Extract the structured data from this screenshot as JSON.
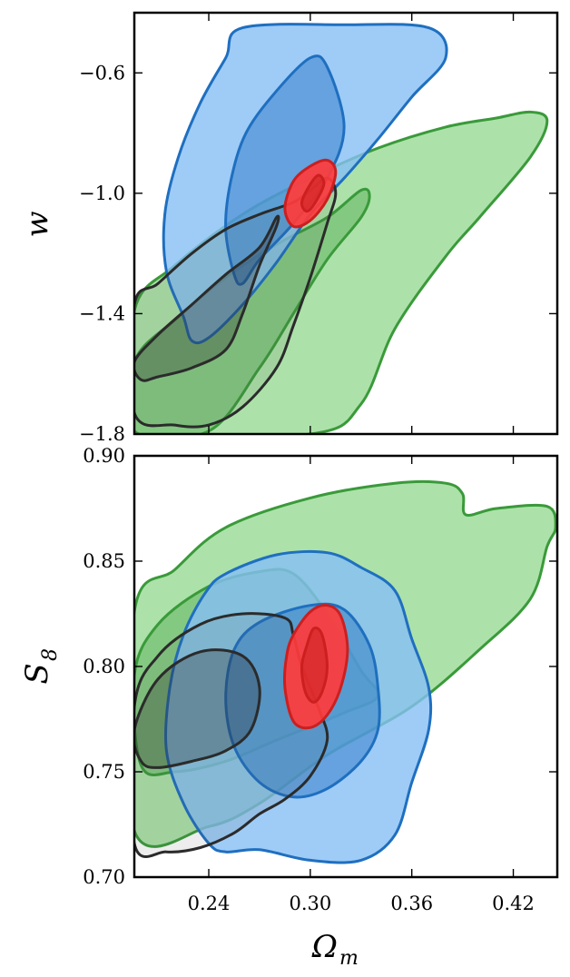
{
  "colors": {
    "green_fill": "#a8e0a4",
    "green_line": "#3a9a3a",
    "blue_fill": "#86bff5",
    "blue_line": "#1f6fc0",
    "dark_fill": "#4f4f4f",
    "dark_line": "#2b2b2b",
    "red_fill": "#ff3b3b",
    "red_line": "#cc1f1f"
  },
  "chart_data": [
    {
      "type": "contour",
      "panel": "top",
      "ylabel": "w",
      "xlim": [
        0.196,
        0.446
      ],
      "ylim": [
        -1.8,
        -0.4
      ],
      "yticks": [
        -0.6,
        -1.0,
        -1.4,
        -1.8
      ],
      "ytick_labels": [
        "−0.6",
        "−1.0",
        "−1.4",
        "−1.8"
      ],
      "xticks": [
        0.24,
        0.3,
        0.36,
        0.42
      ],
      "series": [
        {
          "color": "green",
          "outer": [
            [
              0.196,
              -1.39
            ],
            [
              0.22,
              -1.24
            ],
            [
              0.26,
              -1.07
            ],
            [
              0.3,
              -0.95
            ],
            [
              0.34,
              -0.85
            ],
            [
              0.38,
              -0.78
            ],
            [
              0.41,
              -0.75
            ],
            [
              0.43,
              -0.73
            ],
            [
              0.44,
              -0.76
            ],
            [
              0.43,
              -0.88
            ],
            [
              0.4,
              -1.08
            ],
            [
              0.38,
              -1.21
            ],
            [
              0.35,
              -1.45
            ],
            [
              0.33,
              -1.7
            ],
            [
              0.3,
              -1.8
            ],
            [
              0.196,
              -1.8
            ]
          ],
          "inner": [
            [
              0.196,
              -1.56
            ],
            [
              0.22,
              -1.42
            ],
            [
              0.25,
              -1.28
            ],
            [
              0.28,
              -1.17
            ],
            [
              0.31,
              -1.08
            ],
            [
              0.33,
              -0.99
            ],
            [
              0.335,
              -1.01
            ],
            [
              0.33,
              -1.08
            ],
            [
              0.31,
              -1.22
            ],
            [
              0.29,
              -1.4
            ],
            [
              0.27,
              -1.58
            ],
            [
              0.24,
              -1.79
            ],
            [
              0.196,
              -1.79
            ]
          ]
        },
        {
          "color": "blue",
          "outer": [
            [
              0.26,
              -0.45
            ],
            [
              0.32,
              -0.44
            ],
            [
              0.37,
              -0.45
            ],
            [
              0.38,
              -0.55
            ],
            [
              0.36,
              -0.68
            ],
            [
              0.34,
              -0.82
            ],
            [
              0.32,
              -0.95
            ],
            [
              0.3,
              -1.07
            ],
            [
              0.28,
              -1.23
            ],
            [
              0.26,
              -1.37
            ],
            [
              0.24,
              -1.48
            ],
            [
              0.23,
              -1.49
            ],
            [
              0.225,
              -1.41
            ],
            [
              0.215,
              -1.26
            ],
            [
              0.214,
              -1.07
            ],
            [
              0.222,
              -0.88
            ],
            [
              0.235,
              -0.7
            ],
            [
              0.25,
              -0.55
            ]
          ],
          "inner": [
            [
              0.3,
              -0.55
            ],
            [
              0.31,
              -0.58
            ],
            [
              0.32,
              -0.78
            ],
            [
              0.31,
              -0.95
            ],
            [
              0.29,
              -1.1
            ],
            [
              0.27,
              -1.22
            ],
            [
              0.26,
              -1.3
            ],
            [
              0.255,
              -1.27
            ],
            [
              0.25,
              -1.12
            ],
            [
              0.253,
              -0.96
            ],
            [
              0.262,
              -0.8
            ],
            [
              0.28,
              -0.66
            ]
          ]
        },
        {
          "color": "dark",
          "outer": [
            [
              0.196,
              -1.37
            ],
            [
              0.21,
              -1.3
            ],
            [
              0.23,
              -1.2
            ],
            [
              0.25,
              -1.12
            ],
            [
              0.27,
              -1.07
            ],
            [
              0.29,
              -1.03
            ],
            [
              0.3,
              -0.99
            ],
            [
              0.31,
              -0.95
            ],
            [
              0.315,
              -1.0
            ],
            [
              0.31,
              -1.1
            ],
            [
              0.3,
              -1.28
            ],
            [
              0.29,
              -1.44
            ],
            [
              0.28,
              -1.58
            ],
            [
              0.26,
              -1.71
            ],
            [
              0.24,
              -1.77
            ],
            [
              0.22,
              -1.77
            ],
            [
              0.196,
              -1.73
            ]
          ],
          "inner": [
            [
              0.196,
              -1.56
            ],
            [
              0.21,
              -1.47
            ],
            [
              0.23,
              -1.37
            ],
            [
              0.25,
              -1.27
            ],
            [
              0.27,
              -1.18
            ],
            [
              0.28,
              -1.08
            ],
            [
              0.28,
              -1.11
            ],
            [
              0.27,
              -1.24
            ],
            [
              0.26,
              -1.4
            ],
            [
              0.25,
              -1.52
            ],
            [
              0.23,
              -1.58
            ],
            [
              0.21,
              -1.61
            ],
            [
              0.2,
              -1.62
            ]
          ]
        },
        {
          "color": "red",
          "outer": [
            [
              0.285,
              -1.05
            ],
            [
              0.29,
              -0.96
            ],
            [
              0.3,
              -0.91
            ],
            [
              0.31,
              -0.89
            ],
            [
              0.315,
              -0.93
            ],
            [
              0.31,
              -1.02
            ],
            [
              0.3,
              -1.09
            ],
            [
              0.29,
              -1.11
            ]
          ],
          "inner": [
            [
              0.295,
              -1.03
            ],
            [
              0.3,
              -0.97
            ],
            [
              0.305,
              -0.94
            ],
            [
              0.308,
              -0.97
            ],
            [
              0.303,
              -1.03
            ],
            [
              0.298,
              -1.06
            ]
          ]
        }
      ]
    },
    {
      "type": "contour",
      "panel": "bottom",
      "xlabel": "Ω",
      "xlabel_sub": "m",
      "ylabel": "S",
      "ylabel_sub": "8",
      "xlim": [
        0.196,
        0.446
      ],
      "ylim": [
        0.7,
        0.9
      ],
      "yticks": [
        0.9,
        0.85,
        0.8,
        0.75,
        0.7
      ],
      "ytick_labels": [
        "0.90",
        "0.85",
        "0.80",
        "0.75",
        "0.70"
      ],
      "xticks": [
        0.24,
        0.3,
        0.36,
        0.42
      ],
      "xtick_labels": [
        "0.24",
        "0.30",
        "0.36",
        "0.42"
      ],
      "series": [
        {
          "color": "green",
          "outer": [
            [
              0.196,
              0.826
            ],
            [
              0.22,
              0.846
            ],
            [
              0.25,
              0.866
            ],
            [
              0.3,
              0.88
            ],
            [
              0.35,
              0.887
            ],
            [
              0.38,
              0.887
            ],
            [
              0.39,
              0.882
            ],
            [
              0.392,
              0.872
            ],
            [
              0.41,
              0.875
            ],
            [
              0.44,
              0.876
            ],
            [
              0.445,
              0.866
            ],
            [
              0.44,
              0.857
            ],
            [
              0.43,
              0.832
            ],
            [
              0.4,
              0.808
            ],
            [
              0.36,
              0.781
            ],
            [
              0.31,
              0.758
            ],
            [
              0.27,
              0.735
            ],
            [
              0.24,
              0.724
            ],
            [
              0.196,
              0.722
            ]
          ],
          "inner": [
            [
              0.196,
              0.796
            ],
            [
              0.21,
              0.82
            ],
            [
              0.24,
              0.838
            ],
            [
              0.27,
              0.845
            ],
            [
              0.29,
              0.844
            ],
            [
              0.31,
              0.825
            ],
            [
              0.33,
              0.798
            ],
            [
              0.34,
              0.786
            ],
            [
              0.32,
              0.778
            ],
            [
              0.28,
              0.765
            ],
            [
              0.25,
              0.755
            ],
            [
              0.22,
              0.75
            ],
            [
              0.2,
              0.753
            ]
          ]
        },
        {
          "color": "blue",
          "outer": [
            [
              0.25,
              0.844
            ],
            [
              0.28,
              0.853
            ],
            [
              0.31,
              0.854
            ],
            [
              0.33,
              0.847
            ],
            [
              0.35,
              0.836
            ],
            [
              0.36,
              0.813
            ],
            [
              0.37,
              0.79
            ],
            [
              0.37,
              0.77
            ],
            [
              0.36,
              0.745
            ],
            [
              0.35,
              0.72
            ],
            [
              0.33,
              0.708
            ],
            [
              0.3,
              0.708
            ],
            [
              0.27,
              0.713
            ],
            [
              0.25,
              0.712
            ],
            [
              0.24,
              0.716
            ],
            [
              0.225,
              0.735
            ],
            [
              0.215,
              0.76
            ],
            [
              0.217,
              0.79
            ],
            [
              0.225,
              0.815
            ],
            [
              0.238,
              0.835
            ]
          ],
          "inner": [
            [
              0.27,
              0.821
            ],
            [
              0.3,
              0.829
            ],
            [
              0.32,
              0.827
            ],
            [
              0.335,
              0.81
            ],
            [
              0.34,
              0.79
            ],
            [
              0.34,
              0.77
            ],
            [
              0.33,
              0.755
            ],
            [
              0.31,
              0.742
            ],
            [
              0.29,
              0.738
            ],
            [
              0.27,
              0.745
            ],
            [
              0.255,
              0.762
            ],
            [
              0.25,
              0.785
            ],
            [
              0.255,
              0.808
            ]
          ]
        },
        {
          "color": "dark",
          "outer": [
            [
              0.196,
              0.781
            ],
            [
              0.21,
              0.805
            ],
            [
              0.235,
              0.82
            ],
            [
              0.26,
              0.825
            ],
            [
              0.285,
              0.823
            ],
            [
              0.29,
              0.815
            ],
            [
              0.295,
              0.8
            ],
            [
              0.305,
              0.78
            ],
            [
              0.31,
              0.765
            ],
            [
              0.3,
              0.748
            ],
            [
              0.285,
              0.737
            ],
            [
              0.27,
              0.73
            ],
            [
              0.255,
              0.721
            ],
            [
              0.235,
              0.714
            ],
            [
              0.215,
              0.712
            ],
            [
              0.196,
              0.716
            ]
          ],
          "inner": [
            [
              0.196,
              0.77
            ],
            [
              0.21,
              0.794
            ],
            [
              0.235,
              0.807
            ],
            [
              0.26,
              0.805
            ],
            [
              0.27,
              0.79
            ],
            [
              0.265,
              0.77
            ],
            [
              0.25,
              0.76
            ],
            [
              0.23,
              0.755
            ],
            [
              0.21,
              0.752
            ],
            [
              0.2,
              0.755
            ]
          ]
        },
        {
          "color": "red",
          "outer": [
            [
              0.29,
              0.815
            ],
            [
              0.3,
              0.826
            ],
            [
              0.31,
              0.829
            ],
            [
              0.318,
              0.824
            ],
            [
              0.322,
              0.808
            ],
            [
              0.318,
              0.79
            ],
            [
              0.31,
              0.777
            ],
            [
              0.3,
              0.771
            ],
            [
              0.29,
              0.774
            ],
            [
              0.285,
              0.79
            ],
            [
              0.286,
              0.805
            ]
          ],
          "inner": [
            [
              0.298,
              0.81
            ],
            [
              0.302,
              0.818
            ],
            [
              0.307,
              0.815
            ],
            [
              0.31,
              0.8
            ],
            [
              0.307,
              0.788
            ],
            [
              0.302,
              0.783
            ],
            [
              0.297,
              0.788
            ],
            [
              0.295,
              0.8
            ]
          ]
        }
      ]
    }
  ]
}
